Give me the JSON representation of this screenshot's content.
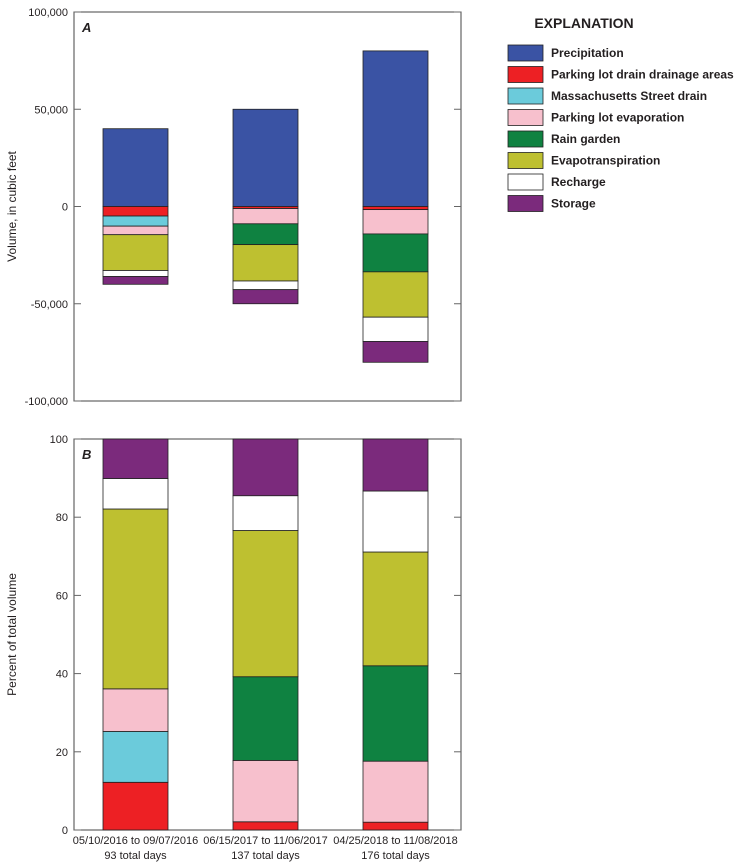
{
  "chart_data": [
    {
      "type": "bar",
      "stacked": true,
      "panel_label": "A",
      "ylabel": "Volume, in cubic feet",
      "ylim": [
        -100000,
        100000
      ],
      "yticks": [
        100000,
        50000,
        0,
        -50000,
        -100000
      ],
      "ytick_labels": [
        "100,000",
        "50,000",
        "0",
        "-50,000",
        "-100,000"
      ],
      "categories": [
        "05/10/2016 to 09/07/2016",
        "06/15/2017 to 11/06/2017",
        "04/25/2018 to 11/08/2018"
      ],
      "series": [
        {
          "name": "Precipitation",
          "values": [
            40000,
            50000,
            80000
          ]
        },
        {
          "name": "Parking lot drain drainage areas",
          "values": [
            -4900,
            -1050,
            -1600
          ]
        },
        {
          "name": "Massachusetts Street drain",
          "values": [
            -5200,
            0,
            0
          ]
        },
        {
          "name": "Parking lot evaporation",
          "values": [
            -4400,
            -7850,
            -12500
          ]
        },
        {
          "name": "Rain garden",
          "values": [
            0,
            -10700,
            -19500
          ]
        },
        {
          "name": "Evapotranspiration",
          "values": [
            -18400,
            -18700,
            -23300
          ]
        },
        {
          "name": "Recharge",
          "values": [
            -3100,
            -4450,
            -12500
          ]
        },
        {
          "name": "Storage",
          "values": [
            -4000,
            -7250,
            -10700
          ]
        }
      ]
    },
    {
      "type": "bar",
      "stacked": true,
      "panel_label": "B",
      "ylabel": "Percent of total volume",
      "ylim": [
        0,
        100
      ],
      "yticks": [
        0,
        20,
        40,
        60,
        80,
        100
      ],
      "ytick_labels": [
        "0",
        "20",
        "40",
        "60",
        "80",
        "100"
      ],
      "categories": [
        "05/10/2016 to 09/07/2016",
        "06/15/2017 to 11/06/2017",
        "04/25/2018 to 11/08/2018"
      ],
      "category_sublabels": [
        "93 total days",
        "137 total days",
        "176 total days"
      ],
      "series": [
        {
          "name": "Parking lot drain drainage areas",
          "values": [
            12.2,
            2.1,
            2.0
          ]
        },
        {
          "name": "Massachusetts Street drain",
          "values": [
            13.0,
            0,
            0
          ]
        },
        {
          "name": "Parking lot evaporation",
          "values": [
            10.9,
            15.7,
            15.6
          ]
        },
        {
          "name": "Rain garden",
          "values": [
            0,
            21.4,
            24.4
          ]
        },
        {
          "name": "Evapotranspiration",
          "values": [
            46.0,
            37.4,
            29.1
          ]
        },
        {
          "name": "Recharge",
          "values": [
            7.8,
            8.9,
            15.6
          ]
        },
        {
          "name": "Storage",
          "values": [
            10.1,
            14.5,
            13.3
          ]
        }
      ]
    }
  ],
  "legend": {
    "title": "EXPLANATION",
    "placement": "top-right",
    "items": [
      {
        "name": "Precipitation",
        "color": "#3a53a4"
      },
      {
        "name": "Parking lot drain drainage areas",
        "color": "#ed2024"
      },
      {
        "name": "Massachusetts Street drain",
        "color": "#6bcbdb"
      },
      {
        "name": "Parking lot evaporation",
        "color": "#f7c0cd"
      },
      {
        "name": "Rain garden",
        "color": "#0f8241"
      },
      {
        "name": "Evapotranspiration",
        "color": "#bec030"
      },
      {
        "name": "Recharge",
        "color": "#ffffff"
      },
      {
        "name": "Storage",
        "color": "#7b2a7c"
      }
    ]
  }
}
